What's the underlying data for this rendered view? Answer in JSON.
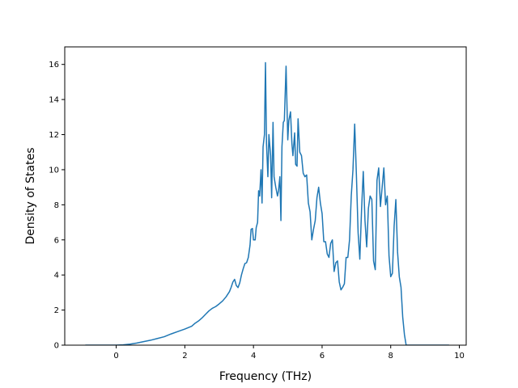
{
  "chart_data": {
    "type": "line",
    "title": "",
    "xlabel": "Frequency (THz)",
    "ylabel": "Density of States",
    "xlim": [
      -1.5,
      10.2
    ],
    "ylim": [
      0,
      17
    ],
    "xticks": [
      0,
      2,
      4,
      6,
      8,
      10
    ],
    "yticks": [
      0,
      2,
      4,
      6,
      8,
      10,
      12,
      14,
      16
    ],
    "grid": false,
    "legend": "none",
    "colors": {
      "line": "#1f77b4",
      "axes": "#000000",
      "background": "#ffffff"
    },
    "series": [
      {
        "points": [
          [
            -0.9,
            0
          ],
          [
            0.0,
            0
          ],
          [
            0.2,
            0.02
          ],
          [
            0.4,
            0.06
          ],
          [
            0.6,
            0.12
          ],
          [
            0.8,
            0.2
          ],
          [
            1.0,
            0.28
          ],
          [
            1.2,
            0.38
          ],
          [
            1.4,
            0.48
          ],
          [
            1.6,
            0.64
          ],
          [
            1.8,
            0.78
          ],
          [
            2.0,
            0.92
          ],
          [
            2.2,
            1.08
          ],
          [
            2.3,
            1.25
          ],
          [
            2.4,
            1.38
          ],
          [
            2.5,
            1.55
          ],
          [
            2.6,
            1.75
          ],
          [
            2.7,
            1.95
          ],
          [
            2.8,
            2.1
          ],
          [
            2.9,
            2.2
          ],
          [
            3.0,
            2.35
          ],
          [
            3.1,
            2.52
          ],
          [
            3.2,
            2.75
          ],
          [
            3.3,
            3.05
          ],
          [
            3.35,
            3.3
          ],
          [
            3.4,
            3.6
          ],
          [
            3.45,
            3.75
          ],
          [
            3.5,
            3.4
          ],
          [
            3.55,
            3.28
          ],
          [
            3.6,
            3.55
          ],
          [
            3.65,
            4.0
          ],
          [
            3.7,
            4.35
          ],
          [
            3.75,
            4.65
          ],
          [
            3.8,
            4.7
          ],
          [
            3.85,
            5.0
          ],
          [
            3.9,
            5.7
          ],
          [
            3.93,
            6.6
          ],
          [
            3.97,
            6.65
          ],
          [
            4.0,
            6.0
          ],
          [
            4.05,
            6.0
          ],
          [
            4.08,
            6.7
          ],
          [
            4.12,
            7.0
          ],
          [
            4.15,
            8.8
          ],
          [
            4.18,
            8.5
          ],
          [
            4.22,
            10.0
          ],
          [
            4.25,
            8.1
          ],
          [
            4.28,
            11.3
          ],
          [
            4.32,
            12.0
          ],
          [
            4.35,
            16.1
          ],
          [
            4.38,
            11.5
          ],
          [
            4.42,
            9.6
          ],
          [
            4.45,
            12.0
          ],
          [
            4.5,
            10.8
          ],
          [
            4.53,
            8.4
          ],
          [
            4.57,
            12.7
          ],
          [
            4.6,
            9.6
          ],
          [
            4.65,
            9.0
          ],
          [
            4.7,
            8.5
          ],
          [
            4.73,
            8.8
          ],
          [
            4.77,
            9.6
          ],
          [
            4.8,
            7.1
          ],
          [
            4.83,
            11.3
          ],
          [
            4.87,
            12.7
          ],
          [
            4.9,
            12.8
          ],
          [
            4.95,
            15.9
          ],
          [
            5.0,
            11.7
          ],
          [
            5.03,
            12.8
          ],
          [
            5.08,
            13.3
          ],
          [
            5.12,
            11.5
          ],
          [
            5.15,
            10.8
          ],
          [
            5.2,
            12.1
          ],
          [
            5.23,
            10.3
          ],
          [
            5.27,
            10.2
          ],
          [
            5.3,
            12.9
          ],
          [
            5.35,
            11.0
          ],
          [
            5.4,
            10.8
          ],
          [
            5.45,
            9.8
          ],
          [
            5.5,
            9.6
          ],
          [
            5.55,
            9.7
          ],
          [
            5.6,
            8.1
          ],
          [
            5.65,
            7.6
          ],
          [
            5.7,
            6.0
          ],
          [
            5.75,
            6.6
          ],
          [
            5.8,
            7.1
          ],
          [
            5.85,
            8.4
          ],
          [
            5.9,
            9.0
          ],
          [
            5.95,
            8.1
          ],
          [
            6.0,
            7.5
          ],
          [
            6.05,
            5.9
          ],
          [
            6.1,
            5.9
          ],
          [
            6.15,
            5.2
          ],
          [
            6.2,
            5.0
          ],
          [
            6.25,
            5.8
          ],
          [
            6.3,
            6.0
          ],
          [
            6.35,
            4.2
          ],
          [
            6.4,
            4.7
          ],
          [
            6.45,
            4.8
          ],
          [
            6.5,
            3.6
          ],
          [
            6.55,
            3.15
          ],
          [
            6.6,
            3.3
          ],
          [
            6.65,
            3.5
          ],
          [
            6.7,
            5.0
          ],
          [
            6.75,
            5.0
          ],
          [
            6.8,
            6.0
          ],
          [
            6.85,
            8.5
          ],
          [
            6.9,
            10.0
          ],
          [
            6.95,
            12.6
          ],
          [
            7.0,
            9.7
          ],
          [
            7.05,
            6.4
          ],
          [
            7.1,
            4.9
          ],
          [
            7.15,
            7.7
          ],
          [
            7.2,
            9.9
          ],
          [
            7.25,
            7.1
          ],
          [
            7.3,
            5.6
          ],
          [
            7.35,
            7.8
          ],
          [
            7.4,
            8.5
          ],
          [
            7.45,
            8.3
          ],
          [
            7.5,
            4.8
          ],
          [
            7.55,
            4.3
          ],
          [
            7.6,
            9.4
          ],
          [
            7.65,
            10.1
          ],
          [
            7.7,
            7.9
          ],
          [
            7.75,
            9.0
          ],
          [
            7.8,
            10.1
          ],
          [
            7.85,
            8.0
          ],
          [
            7.9,
            8.5
          ],
          [
            7.95,
            5.1
          ],
          [
            8.0,
            3.9
          ],
          [
            8.05,
            4.1
          ],
          [
            8.1,
            6.8
          ],
          [
            8.15,
            8.3
          ],
          [
            8.2,
            5.3
          ],
          [
            8.25,
            3.9
          ],
          [
            8.3,
            3.3
          ],
          [
            8.35,
            1.6
          ],
          [
            8.4,
            0.6
          ],
          [
            8.45,
            0
          ],
          [
            9.7,
            0
          ]
        ]
      }
    ]
  }
}
